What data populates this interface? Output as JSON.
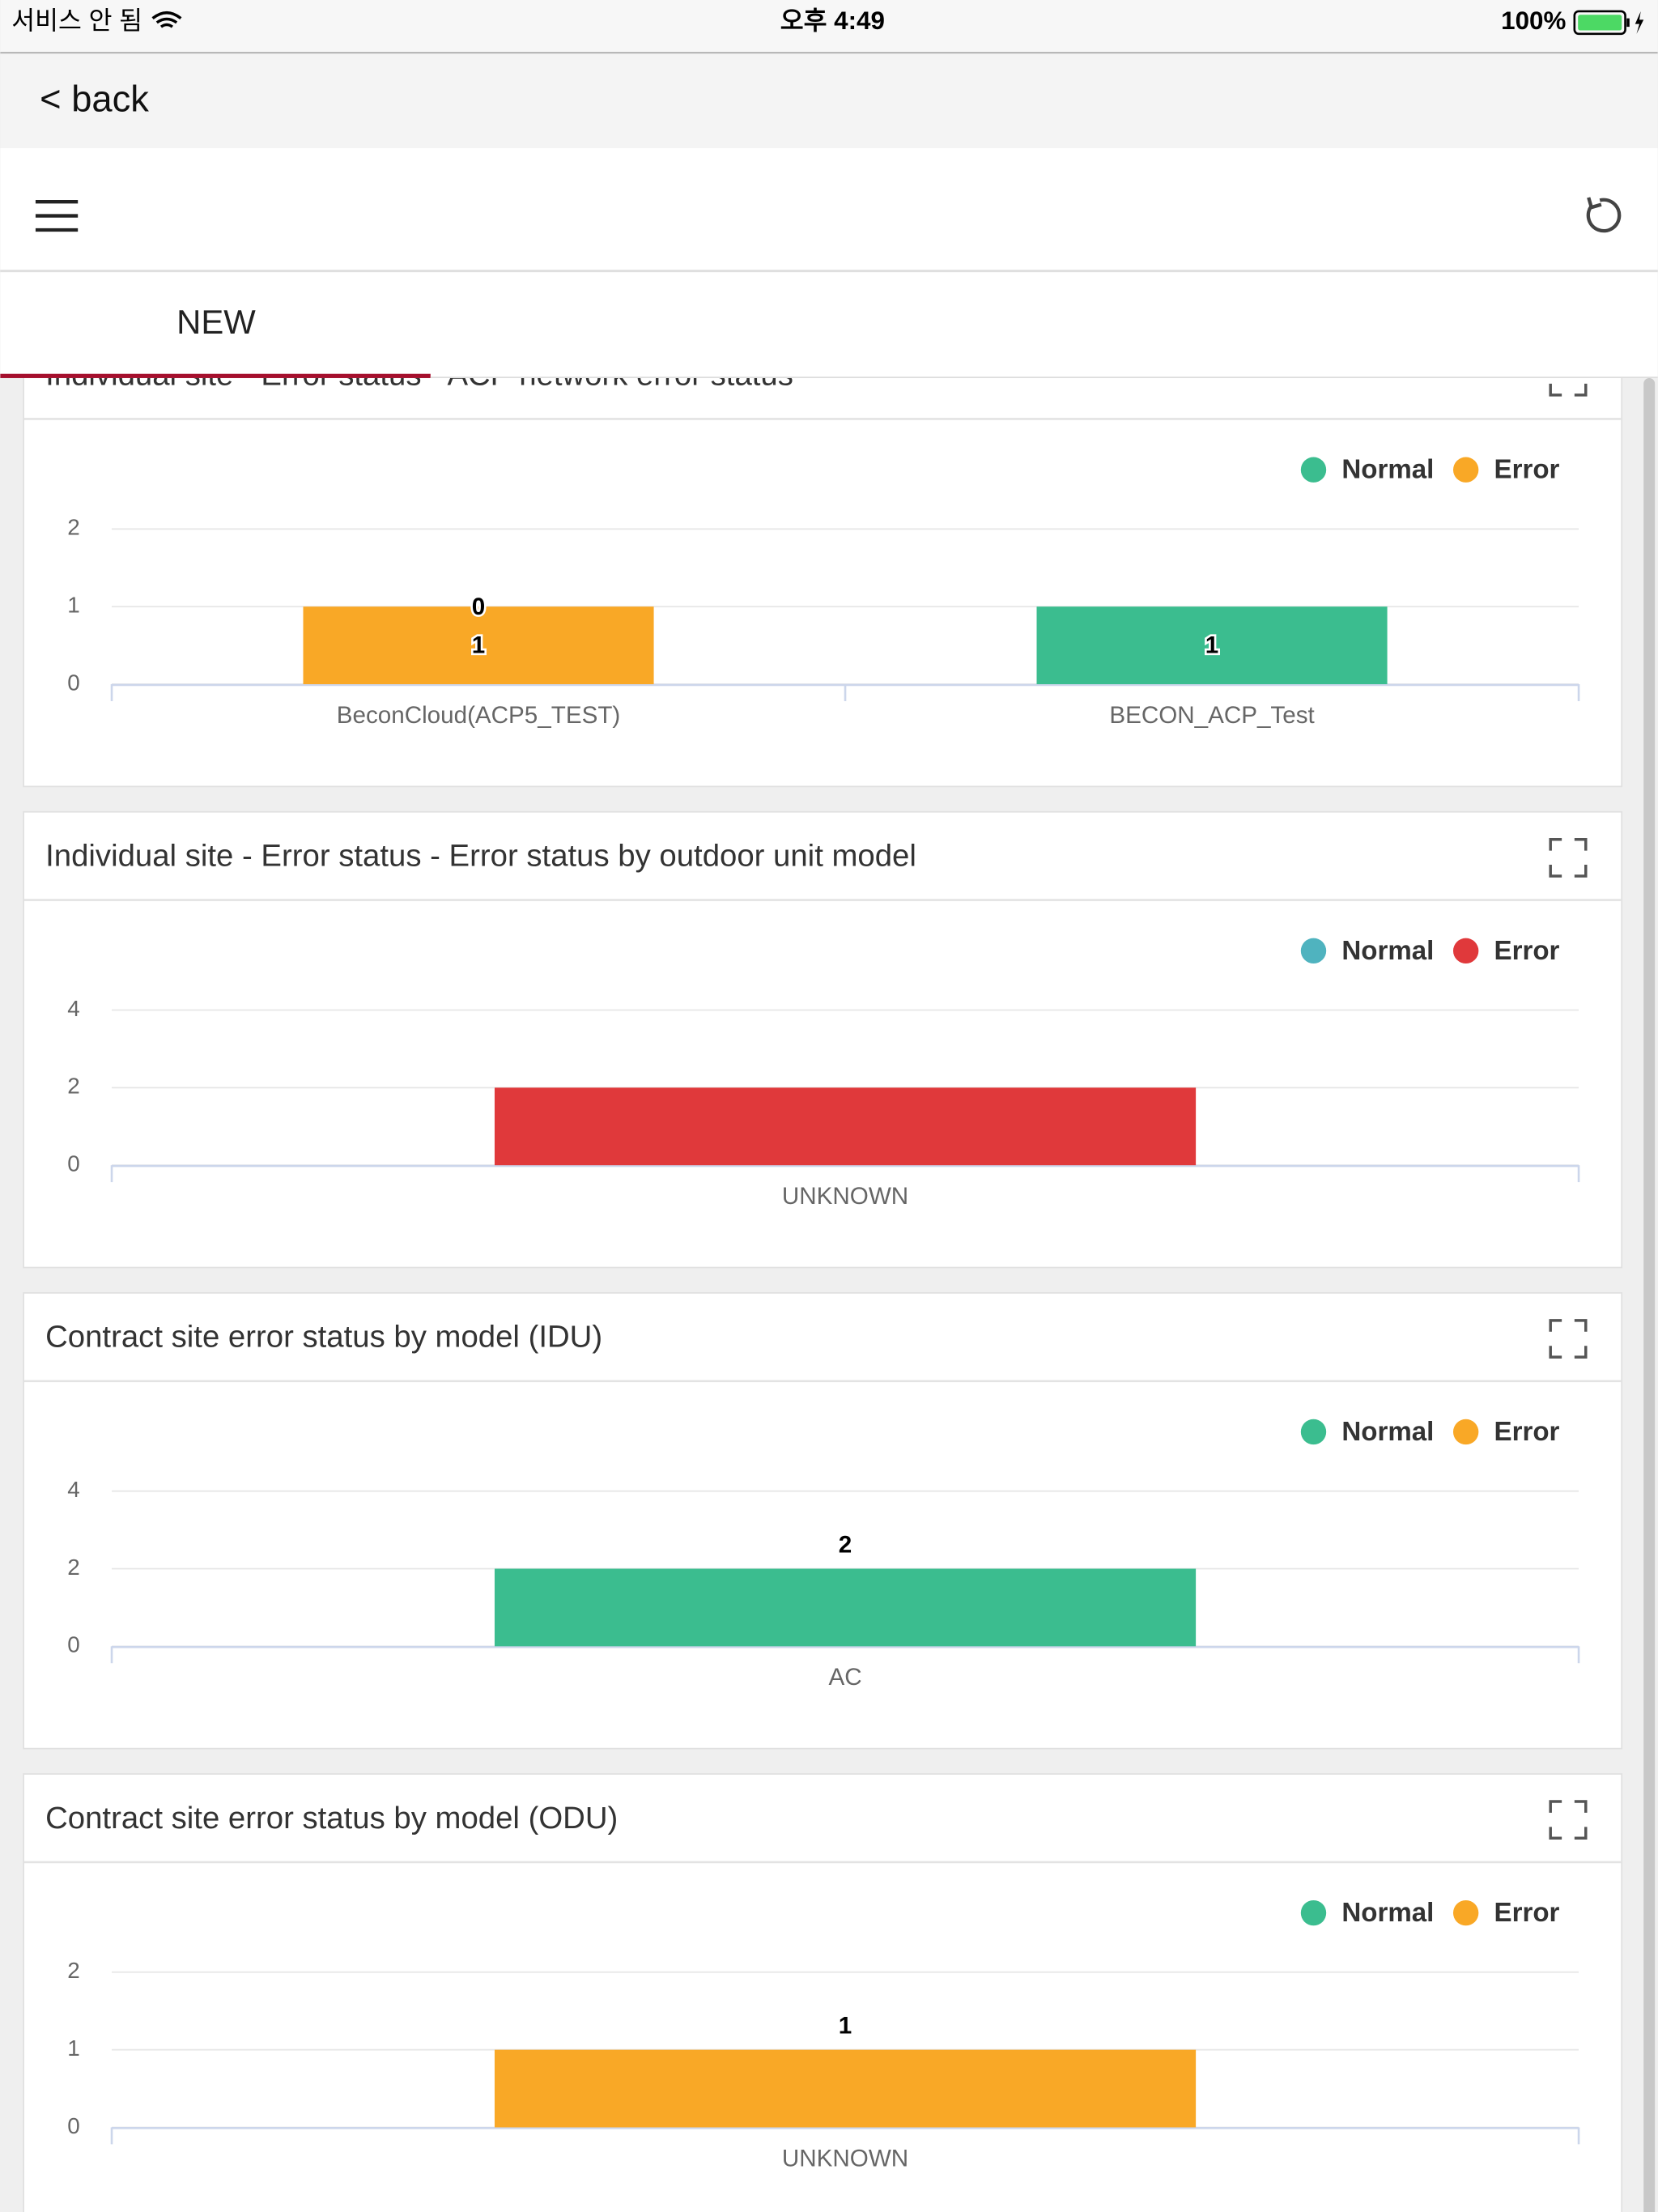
{
  "status_bar": {
    "carrier": "서비스 안 됨",
    "time": "오후 4:49",
    "battery": "100%"
  },
  "nav": {
    "back": "< back"
  },
  "tab": {
    "label": "NEW"
  },
  "chart_data": [
    {
      "type": "bar",
      "stacked": true,
      "title": "Individual site - Error status - ACP network error status",
      "categories": [
        "BeconCloud(ACP5_TEST)",
        "BECON_ACP_Test"
      ],
      "series": [
        {
          "name": "Normal",
          "color": "#3bbd8f",
          "values": [
            0,
            1
          ]
        },
        {
          "name": "Error",
          "color": "#f9a826",
          "values": [
            1,
            null
          ]
        }
      ],
      "ylim": [
        0,
        2
      ],
      "yticks": [
        0,
        1,
        2
      ],
      "grid": true,
      "legend": "top-right",
      "data_labels": true,
      "label_position": "inside"
    },
    {
      "type": "bar",
      "stacked": true,
      "title": "Individual site - Error status - Error status by outdoor unit model",
      "categories": [
        "UNKNOWN"
      ],
      "series": [
        {
          "name": "Normal",
          "color": "#4fb3bf",
          "values": [
            null
          ]
        },
        {
          "name": "Error",
          "color": "#e0393b",
          "values": [
            2
          ]
        }
      ],
      "ylim": [
        0,
        4
      ],
      "yticks": [
        0,
        2,
        4
      ],
      "grid": true,
      "legend": "top-right",
      "data_labels": false
    },
    {
      "type": "bar",
      "stacked": true,
      "title": "Contract site error status by model (IDU)",
      "categories": [
        "AC"
      ],
      "series": [
        {
          "name": "Normal",
          "color": "#3bbd8f",
          "values": [
            2
          ]
        },
        {
          "name": "Error",
          "color": "#f9a826",
          "values": [
            null
          ]
        }
      ],
      "ylim": [
        0,
        4
      ],
      "yticks": [
        0,
        2,
        4
      ],
      "grid": true,
      "legend": "top-right",
      "data_labels": true,
      "label_position": "top"
    },
    {
      "type": "bar",
      "stacked": true,
      "title": "Contract site error status by model (ODU)",
      "categories": [
        "UNKNOWN"
      ],
      "series": [
        {
          "name": "Normal",
          "color": "#3bbd8f",
          "values": [
            null
          ]
        },
        {
          "name": "Error",
          "color": "#f9a826",
          "values": [
            1
          ]
        }
      ],
      "ylim": [
        0,
        2
      ],
      "yticks": [
        0,
        1,
        2
      ],
      "grid": true,
      "legend": "top-right",
      "data_labels": true,
      "label_position": "top"
    }
  ]
}
